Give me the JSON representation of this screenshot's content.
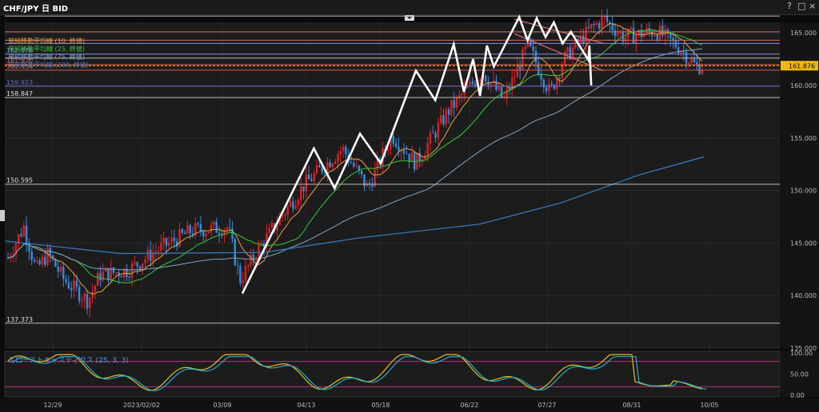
{
  "window": {
    "title": "CHF/JPY 日 BID",
    "controls": [
      "?",
      "□",
      "×"
    ]
  },
  "chart_data": {
    "type": "candlestick",
    "title": "CHF/JPY 日 BID",
    "y_axis": {
      "min": 135,
      "max": 166,
      "ticks": [
        135.0,
        140.0,
        145.0,
        150.0,
        155.0,
        160.0,
        165.0
      ],
      "tick_labels": [
        "135.000",
        "140.000",
        "145.000",
        "150.000",
        "155.000",
        "160.000",
        "165.000"
      ]
    },
    "x_axis": {
      "tick_labels": [
        "12/29",
        "2023/02/02",
        "03/09",
        "04/13",
        "05/18",
        "06/22",
        "07/27",
        "08/31",
        "10/05"
      ]
    },
    "current_price": {
      "value": 161.876,
      "label": "161.876",
      "color": "#f0b90b"
    },
    "legend": [
      {
        "name": "単純移動平均線 (10, 終値)",
        "color": "#e8a23c"
      },
      {
        "name": "単純移動平均線 (25, 終値)",
        "color": "#33cc33"
      },
      {
        "name": "単純移動平均線 (75, 終値)",
        "color": "#7fa6c9"
      },
      {
        "name": "単純移動平均線 (200, 終値)",
        "color": "#3a7dc9"
      }
    ],
    "horizontal_lines": [
      {
        "value": 166.6,
        "label": "",
        "color": "#bbbbbb"
      },
      {
        "value": 165.1,
        "label": "",
        "color": "#d86a6a"
      },
      {
        "value": 164.3,
        "label": "",
        "color": "#d86a6a"
      },
      {
        "value": 164.0,
        "label": "",
        "color": "#8888ee"
      },
      {
        "value": 162.978,
        "label": "162.978",
        "color": "#8888ee"
      },
      {
        "value": 162.6,
        "label": "",
        "color": "#bbbbbb"
      },
      {
        "value": 161.97,
        "label": "161.970",
        "color": "#e05050"
      },
      {
        "value": 161.45,
        "label": "161.454",
        "color": "#e05050"
      },
      {
        "value": 159.923,
        "label": "159.923",
        "color": "#6666dd"
      },
      {
        "value": 158.847,
        "label": "158.847",
        "color": "#bbbbbb"
      },
      {
        "value": 150.595,
        "label": "150.595",
        "color": "#bbbbbb"
      },
      {
        "value": 137.373,
        "label": "137.373",
        "color": "#bbbbbb"
      }
    ],
    "wave_overlay": [
      [
        0.0,
        140.2
      ],
      [
        0.155,
        154.0
      ],
      [
        0.2,
        150.2
      ],
      [
        0.255,
        155.4
      ],
      [
        0.3,
        152.6
      ],
      [
        0.376,
        161.4
      ],
      [
        0.418,
        158.6
      ],
      [
        0.458,
        163.9
      ],
      [
        0.48,
        159.4
      ],
      [
        0.5,
        162.5
      ],
      [
        0.515,
        159.0
      ],
      [
        0.53,
        163.8
      ],
      [
        0.545,
        161.8
      ],
      [
        0.6,
        166.5
      ],
      [
        0.618,
        164.3
      ],
      [
        0.638,
        166.4
      ],
      [
        0.657,
        164.6
      ],
      [
        0.675,
        166.0
      ],
      [
        0.694,
        164.0
      ],
      [
        0.712,
        165.1
      ],
      [
        0.75,
        162.4
      ],
      [
        0.752,
        163.8
      ],
      [
        0.756,
        160.0
      ]
    ],
    "trend_channel": [
      {
        "from": [
          0.59,
          166.3
        ],
        "to": [
          0.782,
          164.0
        ],
        "color": "#e06c6c"
      },
      {
        "from": [
          0.59,
          164.9
        ],
        "to": [
          0.782,
          161.4
        ],
        "color": "#e06c6c"
      }
    ],
    "stochastic": {
      "label": "スローストキャスティクス (25, 3, 3)",
      "y_ticks": [
        0.0,
        50.0,
        100.0
      ],
      "tick_labels": [
        "0.00",
        "50.00",
        "100.00"
      ],
      "levels": [
        80,
        20
      ]
    }
  }
}
